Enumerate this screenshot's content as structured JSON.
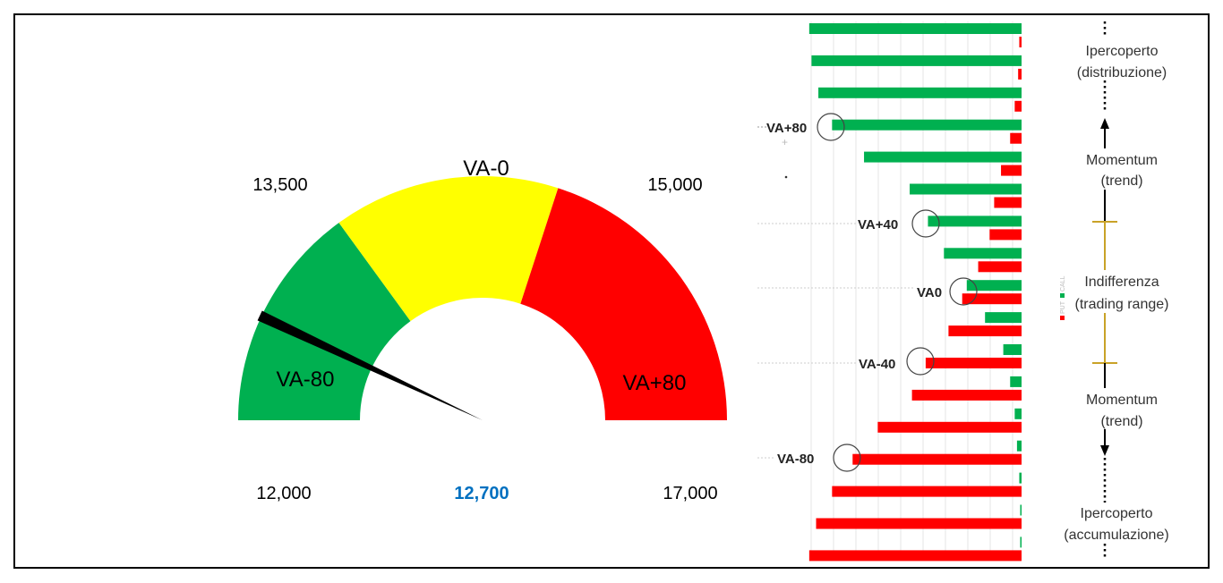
{
  "chart_data": [
    {
      "type": "gauge",
      "min": 12000,
      "max": 17000,
      "value": 12700,
      "bands": [
        {
          "label": "VA-80",
          "from": 12000,
          "to": 13500,
          "color": "#00b050"
        },
        {
          "label": "VA-0",
          "from": 13500,
          "to": 15000,
          "color": "#ffff00"
        },
        {
          "label": "VA+80",
          "from": 15000,
          "to": 17000,
          "color": "#ff0000"
        }
      ],
      "tick_labels": {
        "left_bottom": "12,000",
        "left_top": "13,500",
        "right_top": "15,000",
        "right_bottom": "17,000"
      },
      "value_label": "12,700",
      "value_color": "#0070c0",
      "needle_color": "#000000"
    },
    {
      "type": "bar",
      "orientation": "horizontal",
      "series": [
        {
          "key": "call",
          "color": "#00b050",
          "values": [
            0.93,
            0.92,
            0.89,
            0.83,
            0.69,
            0.49,
            0.41,
            0.34,
            0.24,
            0.16,
            0.08,
            0.05,
            0.03,
            0.02,
            0.01,
            0.005,
            0.003
          ]
        },
        {
          "key": "put",
          "color": "#ff0000",
          "values": [
            0.01,
            0.015,
            0.03,
            0.05,
            0.09,
            0.12,
            0.14,
            0.19,
            0.26,
            0.32,
            0.42,
            0.48,
            0.63,
            0.74,
            0.83,
            0.9,
            0.93
          ]
        }
      ],
      "row_markers": [
        {
          "row": 3,
          "label": "VA+80"
        },
        {
          "row": 6,
          "label": "VA+40"
        },
        {
          "row": 8,
          "label": "VA0"
        },
        {
          "row": 10,
          "label": "VA-40"
        },
        {
          "row": 13,
          "label": "VA-80"
        }
      ],
      "legend": [
        "PUT",
        "CALL"
      ],
      "grid": true
    }
  ],
  "gauge": {
    "band_left": "VA-80",
    "band_mid": "VA-0",
    "band_right": "VA+80",
    "tick_left_bottom": "12,000",
    "tick_left_top": "13,500",
    "tick_right_top": "15,000",
    "tick_right_bottom": "17,000",
    "value": "12,700"
  },
  "bars": {
    "marker_1": "VA+80",
    "marker_2": "VA+40",
    "marker_3": "VA0",
    "marker_4": "VA-40",
    "marker_5": "VA-80",
    "legend_put": "PUT",
    "legend_call": "CALL"
  },
  "zones": {
    "z1_line1": "Ipercoperto",
    "z1_line2": "(distribuzione)",
    "z2_line1": "Momentum",
    "z2_line2": "(trend)",
    "z3_line1": "Indifferenza",
    "z3_line2": "(trading range)",
    "z4_line1": "Momentum",
    "z4_line2": "(trend)",
    "z5_line1": "Ipercoperto",
    "z5_line2": "(accumulazione)"
  }
}
